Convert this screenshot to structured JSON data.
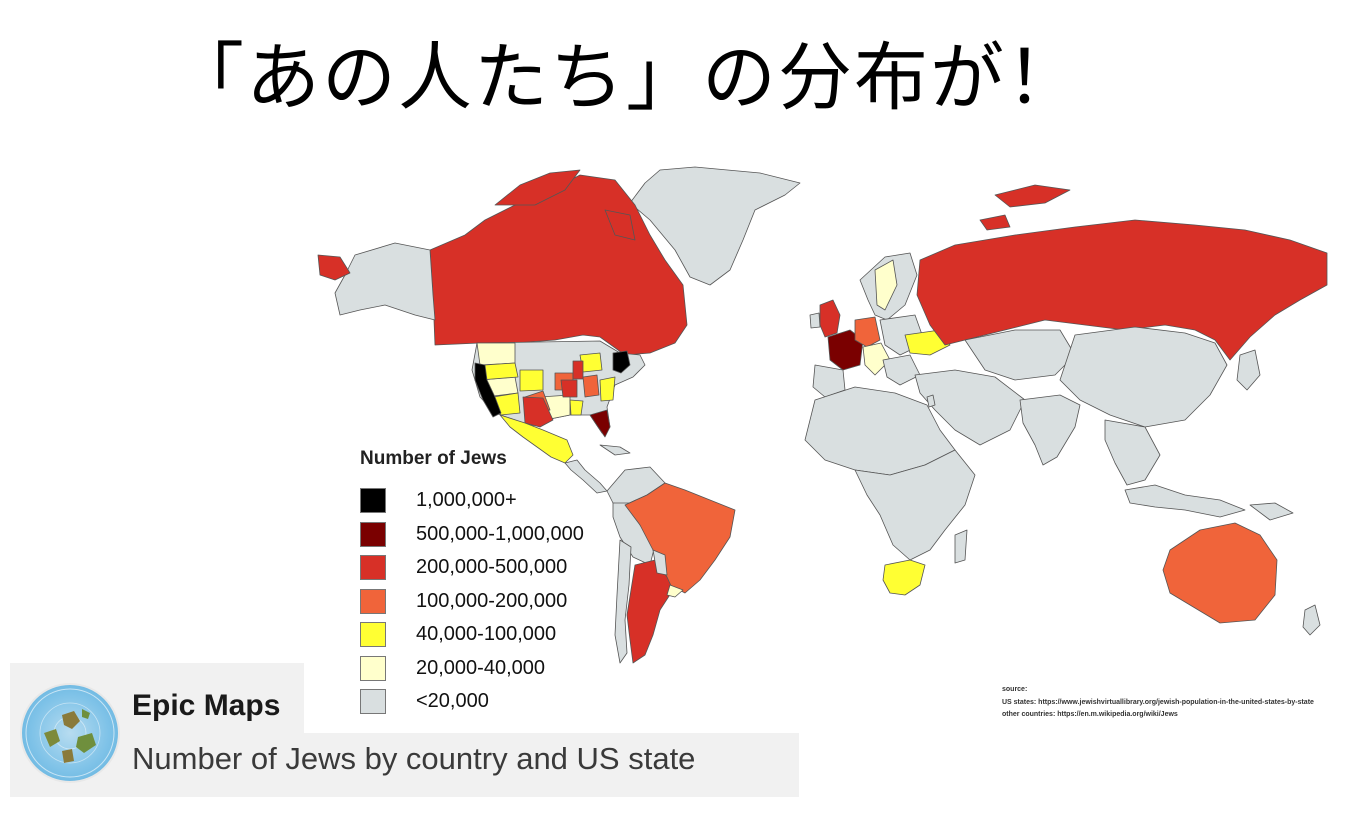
{
  "headline": "「あの人たち」の分布が！",
  "map": {
    "legend_title": "Number of Jews",
    "legend": [
      {
        "label": "1,000,000+",
        "color": "#000000"
      },
      {
        "label": "500,000-1,000,000",
        "color": "#7a0000"
      },
      {
        "label": "200,000-500,000",
        "color": "#d73027"
      },
      {
        "label": "100,000-200,000",
        "color": "#f0643a"
      },
      {
        "label": "40,000-100,000",
        "color": "#ffff33"
      },
      {
        "label": "20,000-40,000",
        "color": "#ffffcc"
      },
      {
        "label": "<20,000",
        "color": "#d9dfe0"
      }
    ],
    "source_heading": "source:",
    "source_us": "US states: https://www.jewishvirtuallibrary.org/jewish-population-in-the-united-states-by-state",
    "source_other": "other countries: https://en.m.wikipedia.org/wiki/Jews"
  },
  "post": {
    "author": "Epic Maps",
    "caption": "Number of Jews by country and US state",
    "avatar_icon": "flat-earth-map-icon"
  }
}
